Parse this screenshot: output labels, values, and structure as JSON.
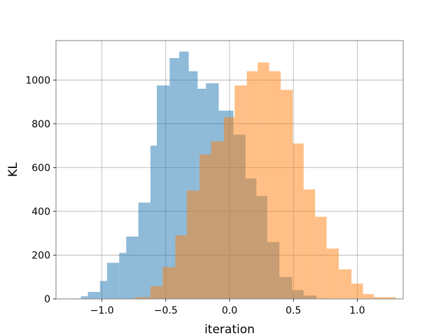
{
  "chart_data": {
    "type": "bar",
    "title": "",
    "xlabel": "iteration",
    "ylabel": "KL",
    "xlim": [
      -1.36,
      1.36
    ],
    "ylim": [
      0,
      1180
    ],
    "grid": true,
    "legend": "none",
    "xticks": [
      -1.0,
      -0.5,
      0.0,
      0.5,
      1.0
    ],
    "xtick_labels": [
      "−1.0",
      "−0.5",
      "0.0",
      "0.5",
      "1.0"
    ],
    "yticks": [
      0,
      200,
      400,
      600,
      800,
      1000
    ],
    "ytick_labels": [
      "0",
      "200",
      "400",
      "600",
      "800",
      "1000"
    ],
    "series": [
      {
        "color": "#1f77b4",
        "opacity": 0.5,
        "bins": [
          [
            -1.26,
            -1.165,
            2
          ],
          [
            -1.165,
            -1.11,
            12
          ],
          [
            -1.11,
            -1.015,
            32
          ],
          [
            -1.015,
            -0.96,
            82
          ],
          [
            -0.96,
            -0.865,
            165
          ],
          [
            -0.865,
            -0.81,
            210
          ],
          [
            -0.81,
            -0.715,
            285
          ],
          [
            -0.715,
            -0.62,
            440
          ],
          [
            -0.62,
            -0.57,
            700
          ],
          [
            -0.57,
            -0.47,
            975
          ],
          [
            -0.47,
            -0.395,
            1100
          ],
          [
            -0.395,
            -0.32,
            1130
          ],
          [
            -0.32,
            -0.25,
            1040
          ],
          [
            -0.25,
            -0.185,
            960
          ],
          [
            -0.185,
            -0.085,
            985
          ],
          [
            -0.085,
            0.03,
            860
          ],
          [
            0.03,
            0.125,
            750
          ],
          [
            0.125,
            0.21,
            550
          ],
          [
            0.21,
            0.295,
            470
          ],
          [
            0.295,
            0.39,
            260
          ],
          [
            0.39,
            0.49,
            100
          ],
          [
            0.49,
            0.58,
            40
          ],
          [
            0.58,
            0.68,
            15
          ],
          [
            0.68,
            0.76,
            2
          ]
        ]
      },
      {
        "color": "#ff7f0e",
        "opacity": 0.5,
        "bins": [
          [
            -0.74,
            -0.62,
            8
          ],
          [
            -0.62,
            -0.525,
            58
          ],
          [
            -0.525,
            -0.425,
            145
          ],
          [
            -0.425,
            -0.335,
            290
          ],
          [
            -0.335,
            -0.235,
            495
          ],
          [
            -0.235,
            -0.145,
            660
          ],
          [
            -0.145,
            -0.045,
            720
          ],
          [
            -0.045,
            0.04,
            830
          ],
          [
            0.04,
            0.135,
            975
          ],
          [
            0.135,
            0.22,
            1040
          ],
          [
            0.22,
            0.31,
            1080
          ],
          [
            0.31,
            0.4,
            1040
          ],
          [
            0.4,
            0.495,
            955
          ],
          [
            0.495,
            0.58,
            710
          ],
          [
            0.58,
            0.67,
            500
          ],
          [
            0.67,
            0.76,
            375
          ],
          [
            0.76,
            0.855,
            230
          ],
          [
            0.855,
            0.955,
            135
          ],
          [
            0.955,
            1.045,
            70
          ],
          [
            1.045,
            1.13,
            22
          ],
          [
            1.13,
            1.3,
            8
          ]
        ]
      }
    ]
  }
}
